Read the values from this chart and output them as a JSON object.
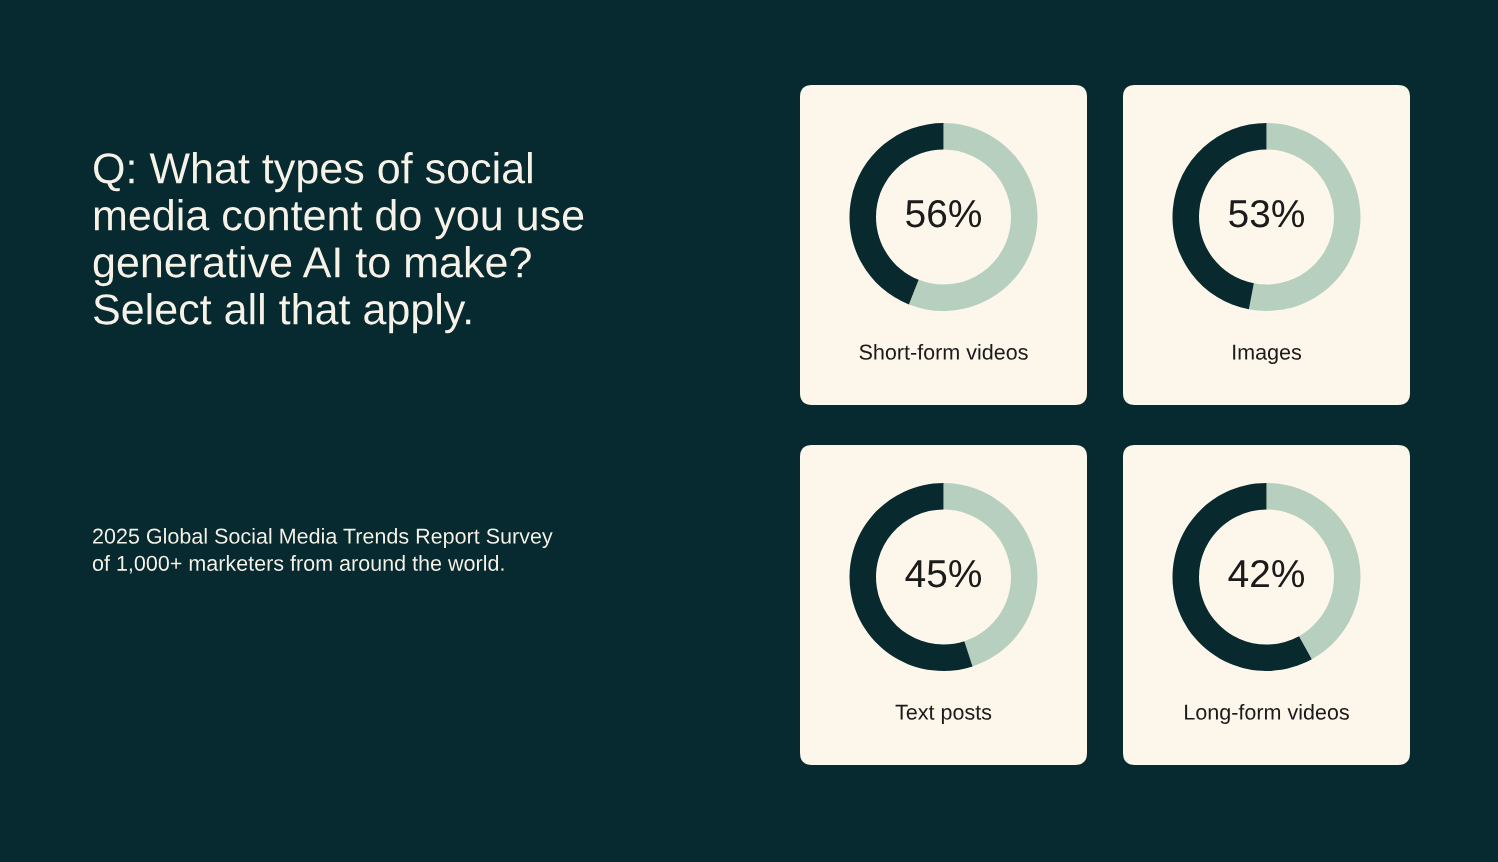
{
  "chart_data": [
    {
      "type": "other",
      "title": "Q: What types of social media content do you use generative AI to make? Select all that apply.",
      "annotations": [
        "2025 Global Social Media Trends Report Survey of 1,000+ marketers from around the world."
      ]
    },
    {
      "type": "donut",
      "title": "Short-form videos",
      "categories": [
        null,
        null
      ],
      "values": [
        56,
        44
      ],
      "colors": [
        "#b7cfbf",
        "#082a2f"
      ],
      "value_labels": [
        "56%",
        null
      ]
    },
    {
      "type": "donut",
      "title": "Images",
      "categories": [
        null,
        null
      ],
      "values": [
        53,
        47
      ],
      "colors": [
        "#b7cfbf",
        "#082a2f"
      ],
      "value_labels": [
        "53%",
        null
      ]
    },
    {
      "type": "donut",
      "title": "Text posts",
      "categories": [
        null,
        null
      ],
      "values": [
        45,
        55
      ],
      "colors": [
        "#b7cfbf",
        "#082a2f"
      ],
      "value_labels": [
        "45%",
        null
      ]
    },
    {
      "type": "donut",
      "title": "Long-form videos",
      "categories": [
        null,
        null
      ],
      "values": [
        42,
        58
      ],
      "colors": [
        "#b7cfbf",
        "#082a2f"
      ],
      "value_labels": [
        "42%",
        null
      ]
    }
  ]
}
